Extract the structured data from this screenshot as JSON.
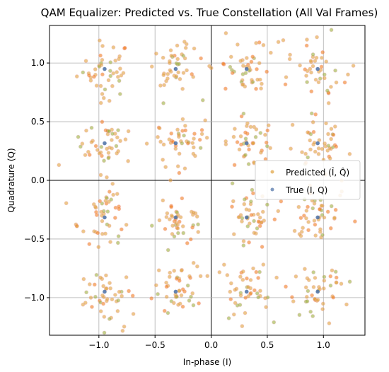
{
  "chart_data": {
    "type": "scatter",
    "title": "QAM Equalizer: Predicted vs. True Constellation (All Val Frames)",
    "xlabel": "In-phase (I)",
    "ylabel": "Quadrature (Q)",
    "xlim": [
      -1.44,
      1.37
    ],
    "ylim": [
      -1.32,
      1.32
    ],
    "xticks": [
      -1.0,
      -0.5,
      0.0,
      0.5,
      1.0
    ],
    "xtick_labels": [
      "−1.0",
      "−0.5",
      "0.0",
      "0.5",
      "1.0"
    ],
    "yticks": [
      -1.0,
      -0.5,
      0.0,
      0.5,
      1.0
    ],
    "ytick_labels": [
      "−1.0",
      "−0.5",
      "0.0",
      "0.5",
      "1.0"
    ],
    "grid": true,
    "legend_position": "center-right",
    "series": [
      {
        "name": "Predicted ($\\hat{I}, \\hat{Q}$)",
        "legend_label": "Predicted (Î, Q̂)",
        "marker": "circle",
        "color": "#e0a13c",
        "edge_color": "#f0b0c8",
        "spread": 0.12,
        "points_per_cluster": 45
      },
      {
        "name": "True ($I, Q$)",
        "legend_label": "True (I, Q)",
        "marker": "circle",
        "color": "#4a6fa5",
        "points": [
          [
            -0.949,
            0.949
          ],
          [
            -0.316,
            0.949
          ],
          [
            0.316,
            0.949
          ],
          [
            0.949,
            0.949
          ],
          [
            -0.949,
            0.316
          ],
          [
            -0.316,
            0.316
          ],
          [
            0.316,
            0.316
          ],
          [
            0.949,
            0.316
          ],
          [
            -0.949,
            -0.316
          ],
          [
            -0.316,
            -0.316
          ],
          [
            0.316,
            -0.316
          ],
          [
            0.949,
            -0.316
          ],
          [
            -0.949,
            -0.949
          ],
          [
            -0.316,
            -0.949
          ],
          [
            0.316,
            -0.949
          ],
          [
            0.949,
            -0.949
          ]
        ]
      }
    ],
    "colors": {
      "predicted": "#e0a13c",
      "predicted_alt": "#f07f20",
      "predicted_green": "#9bb040",
      "predicted_edge": "#f0b0c8",
      "true": "#4a6fa5",
      "grid": "#b0b0b0",
      "zero_line": "#000000"
    }
  }
}
